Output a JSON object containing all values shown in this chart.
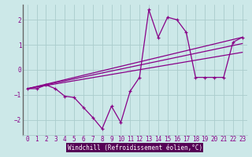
{
  "xlabel": "Windchill (Refroidissement éolien,°C)",
  "background_color": "#cce8e8",
  "xlabel_bg_color": "#550055",
  "xlabel_text_color": "#ffffff",
  "grid_color": "#aacccc",
  "line_color": "#880088",
  "x_ticks": [
    0,
    1,
    2,
    3,
    4,
    5,
    6,
    7,
    8,
    9,
    10,
    11,
    12,
    13,
    14,
    15,
    16,
    17,
    18,
    19,
    20,
    21,
    22,
    23
  ],
  "y_ticks": [
    -2,
    -1,
    0,
    1,
    2
  ],
  "ylim": [
    -2.6,
    2.6
  ],
  "xlim": [
    -0.5,
    23.5
  ],
  "series1_x": [
    0,
    1,
    2,
    3,
    4,
    5,
    6,
    7,
    8,
    9,
    10,
    11,
    12,
    13,
    14,
    15,
    16,
    17,
    18,
    19,
    20,
    21,
    22,
    23
  ],
  "series1_y": [
    -0.75,
    -0.75,
    -0.6,
    -0.75,
    -1.05,
    -1.1,
    -1.5,
    -1.9,
    -2.35,
    -1.45,
    -2.1,
    -0.85,
    -0.3,
    2.4,
    1.3,
    2.1,
    2.0,
    1.5,
    -0.3,
    -0.3,
    -0.3,
    -0.3,
    1.1,
    1.3
  ],
  "line1_x": [
    0,
    23
  ],
  "line1_y": [
    -0.75,
    1.3
  ],
  "line2_x": [
    0,
    23
  ],
  "line2_y": [
    -0.75,
    1.05
  ],
  "line3_x": [
    0,
    23
  ],
  "line3_y": [
    -0.75,
    0.7
  ],
  "tick_fontsize": 5.5,
  "xlabel_fontsize": 5.5
}
